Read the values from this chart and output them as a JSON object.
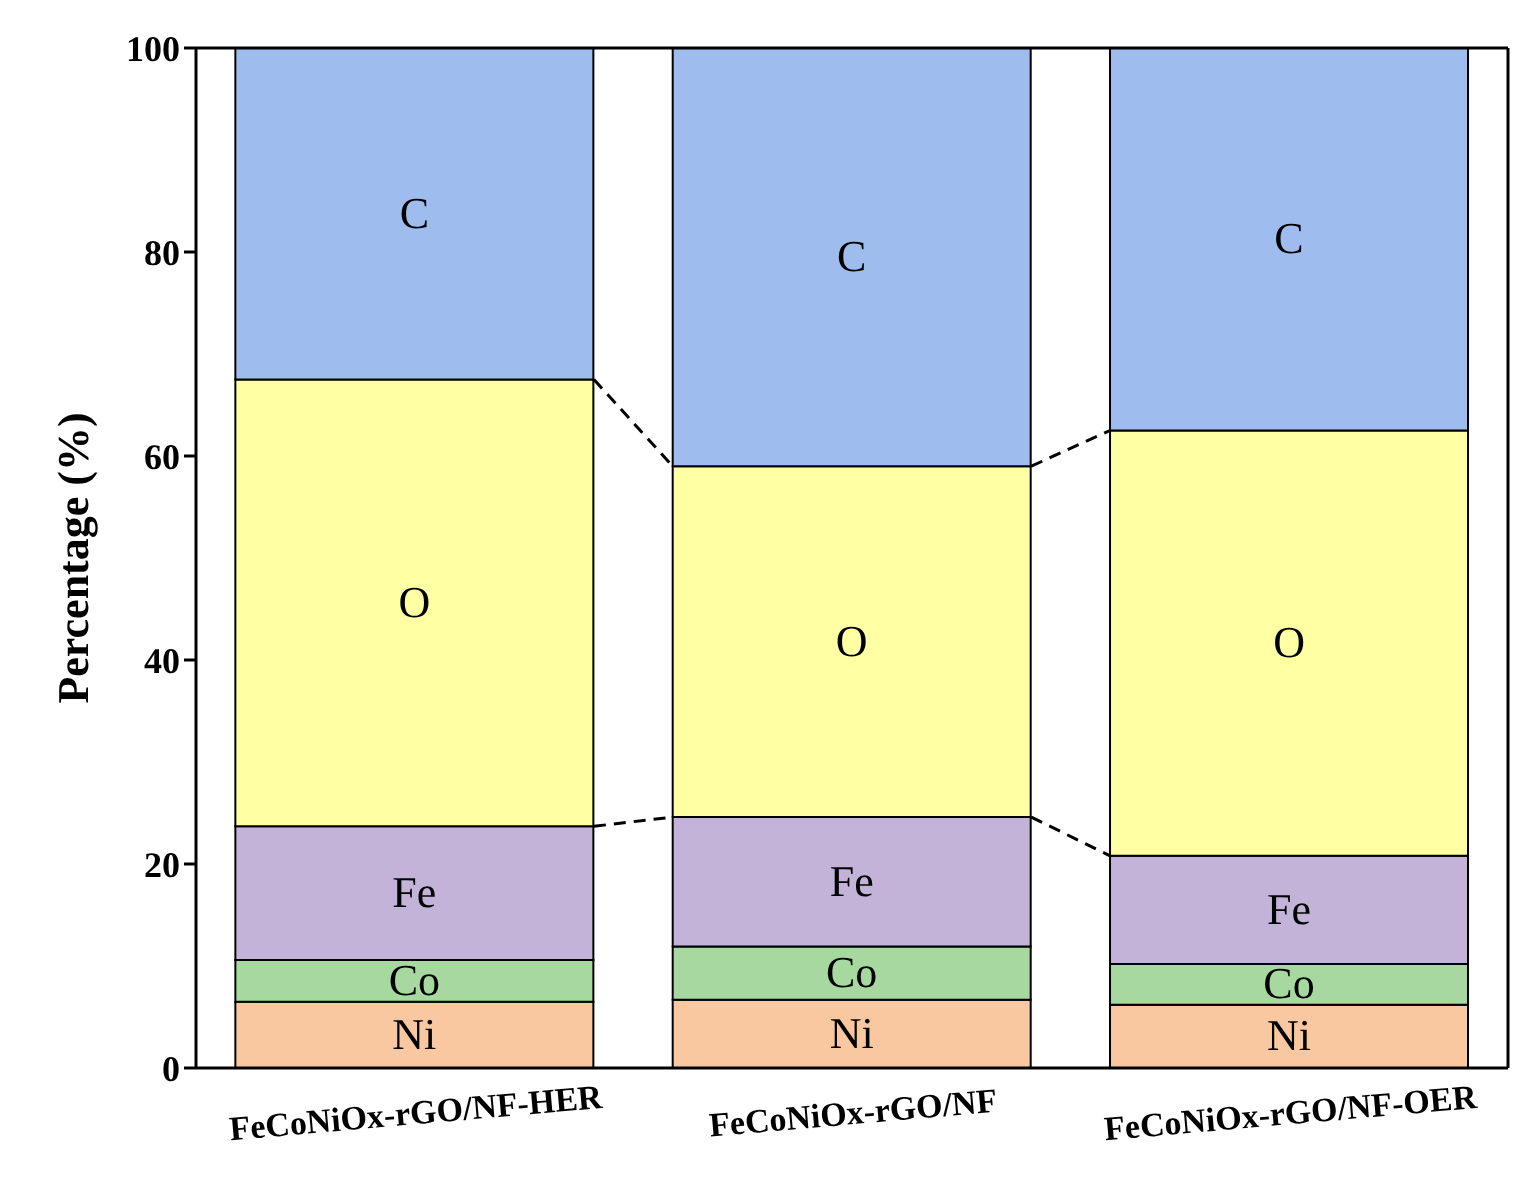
{
  "chart_data": {
    "type": "bar",
    "stacked": true,
    "ylabel": "Percentage (%)",
    "categories": [
      "FeCoNiOx-rGO/NF-HER",
      "FeCoNiOx-rGO/NF",
      "FeCoNiOx-rGO/NF-OER"
    ],
    "series": [
      {
        "name": "Ni",
        "color": "#fac8a0",
        "values": [
          6.5,
          6.7,
          6.2
        ]
      },
      {
        "name": "Co",
        "color": "#a6d8a0",
        "values": [
          4.1,
          5.2,
          4.0
        ]
      },
      {
        "name": "Fe",
        "color": "#c3b3d9",
        "values": [
          13.1,
          12.7,
          10.6
        ]
      },
      {
        "name": "O",
        "color": "#ffffa3",
        "values": [
          43.8,
          34.4,
          41.7
        ]
      },
      {
        "name": "C",
        "color": "#9fbcef",
        "values": [
          32.5,
          41.0,
          37.5
        ]
      }
    ],
    "ylim": [
      0,
      100
    ],
    "yticks": [
      0,
      20,
      40,
      60,
      80,
      100
    ]
  }
}
